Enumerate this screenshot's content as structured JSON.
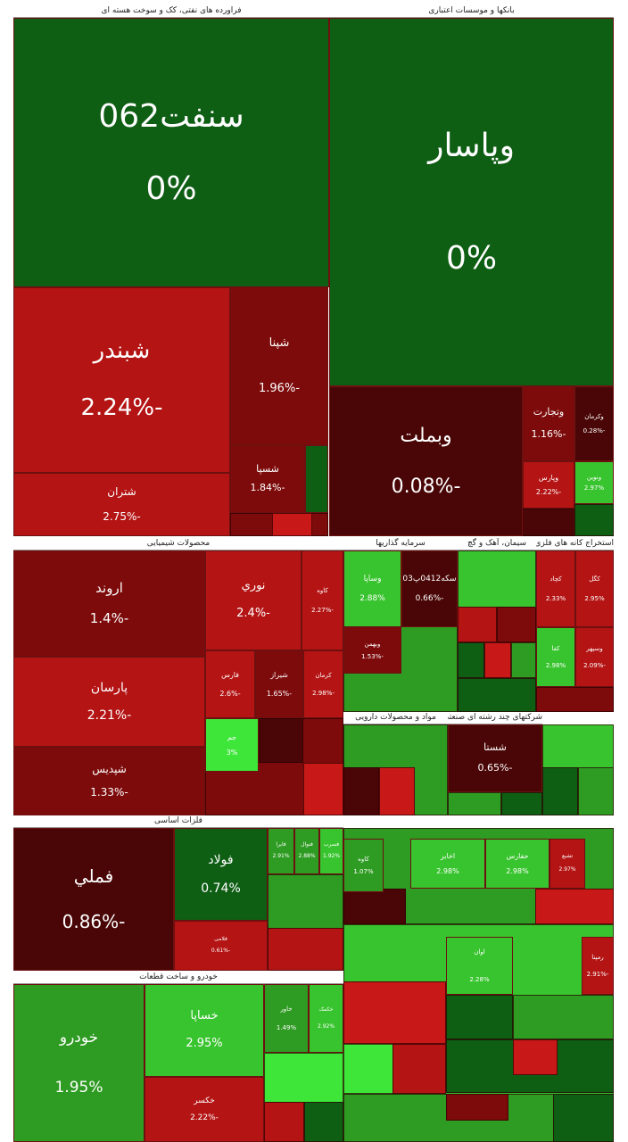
{
  "colors": {
    "dark_green": "#0e5e14",
    "mid_green": "#2e9b22",
    "light_green": "#38c42e",
    "bright_green": "#3ee63a",
    "dark_red": "#4a0606",
    "maroon": "#7d0b0b",
    "red": "#b41414",
    "bright_red": "#c91818"
  },
  "sectors": [
    {
      "id": "s1",
      "title": "فراورده های نفتی، کک و سوخت هسته ای"
    },
    {
      "id": "s2",
      "title": "بانکها و موسسات اعتباری"
    },
    {
      "id": "s3",
      "title": "محصولات شیمیایی"
    },
    {
      "id": "s4",
      "title": "سرمایه گذاریها"
    },
    {
      "id": "s5",
      "title": "سیمان، آهک و گچ"
    },
    {
      "id": "s6",
      "title": "استخراج کانه های فلزی"
    },
    {
      "id": "s7",
      "title": "مواد و محصولات دارویی"
    },
    {
      "id": "s8",
      "title": "شرکتهای چند رشته ای صنعتی"
    },
    {
      "id": "s9",
      "title": "فلزات اساسی"
    },
    {
      "id": "s10",
      "title": "خودرو و ساخت قطعات"
    }
  ],
  "chart_data": {
    "type": "treemap",
    "tiles": [
      {
        "symbol": "سنفت062",
        "change": "0%",
        "value": 0
      },
      {
        "symbol": "وپاسار",
        "change": "0%",
        "value": 0
      },
      {
        "symbol": "شبندر",
        "change": "-2.24%",
        "value": -2.24
      },
      {
        "symbol": "شپنا",
        "change": "-1.96%",
        "value": -1.96
      },
      {
        "symbol": "شتران",
        "change": "-2.75%",
        "value": -2.75
      },
      {
        "symbol": "شسپا",
        "change": "-1.84%",
        "value": -1.84
      },
      {
        "symbol": "وبملت",
        "change": "-0.08%",
        "value": -0.08
      },
      {
        "symbol": "وتجارت",
        "change": "-1.16%",
        "value": -1.16
      },
      {
        "symbol": "وکرمان",
        "change": "-0.28%",
        "value": -0.28
      },
      {
        "symbol": "وپارس",
        "change": "-2.22%",
        "value": -2.22
      },
      {
        "symbol": "ونوین",
        "change": "2.97%",
        "value": 2.97
      },
      {
        "symbol": "اروند",
        "change": "-1.4%",
        "value": -1.4
      },
      {
        "symbol": "نوري",
        "change": "-2.4%",
        "value": -2.4
      },
      {
        "symbol": "کاوه",
        "change": "-2.27%",
        "value": -2.27
      },
      {
        "symbol": "پارسان",
        "change": "-2.21%",
        "value": -2.21
      },
      {
        "symbol": "فارس",
        "change": "-2.6%",
        "value": -2.6
      },
      {
        "symbol": "شیراز",
        "change": "-1.65%",
        "value": -1.65
      },
      {
        "symbol": "کرمان",
        "change": "-2.98%",
        "value": -2.98
      },
      {
        "symbol": "شپدیس",
        "change": "-1.33%",
        "value": -1.33
      },
      {
        "symbol": "جم",
        "change": "3%",
        "value": 3
      },
      {
        "symbol": "وساپا",
        "change": "2.88%",
        "value": 2.88
      },
      {
        "symbol": "سکه0412پ03",
        "change": "-0.66%",
        "value": -0.66
      },
      {
        "symbol": "وبهمن",
        "change": "-1.53%",
        "value": -1.53
      },
      {
        "symbol": "کچاد",
        "change": "2.33%",
        "value": 2.33
      },
      {
        "symbol": "کگل",
        "change": "2.95%",
        "value": 2.95
      },
      {
        "symbol": "کفا",
        "change": "2.98%",
        "value": 2.98
      },
      {
        "symbol": "وسپهر",
        "change": "-2.09%",
        "value": -2.09
      },
      {
        "symbol": "شستا",
        "change": "-0.65%",
        "value": -0.65
      },
      {
        "symbol": "فملي",
        "change": "-0.86%",
        "value": -0.86
      },
      {
        "symbol": "فولاد",
        "change": "0.74%",
        "value": 0.74
      },
      {
        "symbol": "فایرا",
        "change": "2.91%",
        "value": 2.91
      },
      {
        "symbol": "فنوال",
        "change": "2.88%",
        "value": 2.88
      },
      {
        "symbol": "فسرب",
        "change": "1.92%",
        "value": 1.92
      },
      {
        "symbol": "فلامی",
        "change": "-0.61%",
        "value": -0.61
      },
      {
        "symbol": "کاوه",
        "change": "1.07%",
        "value": 1.07
      },
      {
        "symbol": "اخابر",
        "change": "2.98%",
        "value": 2.98
      },
      {
        "symbol": "حفارس",
        "change": "2.98%",
        "value": 2.98
      },
      {
        "symbol": "خودرو",
        "change": "1.95%",
        "value": 1.95
      },
      {
        "symbol": "خساپا",
        "change": "2.95%",
        "value": 2.95
      },
      {
        "symbol": "خاور",
        "change": "1.49%",
        "value": 1.49
      },
      {
        "symbol": "خکمک",
        "change": "2.92%",
        "value": 2.92
      },
      {
        "symbol": "خکسر",
        "change": "-2.22%",
        "value": -2.22
      },
      {
        "symbol": "رمپنا",
        "change": "-2.91%",
        "value": -2.91
      },
      {
        "symbol": "اوان",
        "change": "2.28%",
        "value": 2.28
      },
      {
        "symbol": "تشبع",
        "change": "2.97%",
        "value": 2.97
      }
    ]
  }
}
